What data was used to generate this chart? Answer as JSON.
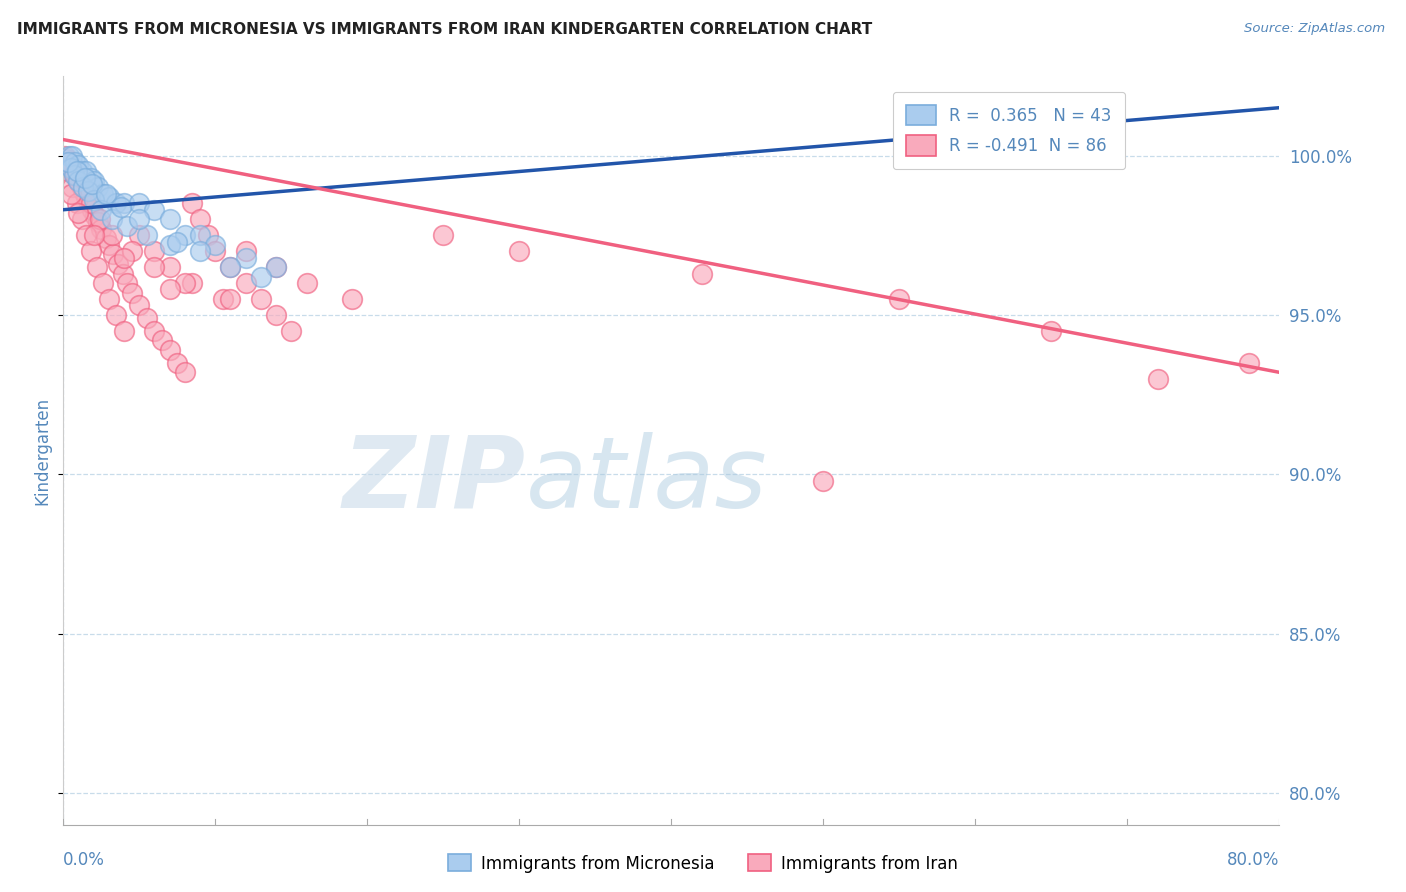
{
  "title": "IMMIGRANTS FROM MICRONESIA VS IMMIGRANTS FROM IRAN KINDERGARTEN CORRELATION CHART",
  "source": "Source: ZipAtlas.com",
  "ylabel": "Kindergarten",
  "yticks": [
    80.0,
    85.0,
    90.0,
    95.0,
    100.0
  ],
  "xlim": [
    0.0,
    80.0
  ],
  "ylim": [
    79.0,
    102.5
  ],
  "legend1_R": "0.365",
  "legend1_N": "43",
  "legend2_R": "-0.491",
  "legend2_N": "86",
  "blue_color": "#7aaddc",
  "pink_color": "#f06080",
  "blue_face": "#aaccee",
  "pink_face": "#f9aabc",
  "micronesia_x": [
    0.4,
    0.6,
    0.8,
    1.0,
    1.2,
    1.5,
    1.8,
    2.0,
    2.3,
    2.6,
    3.0,
    3.5,
    4.0,
    5.0,
    6.0,
    7.0,
    8.0,
    9.0,
    10.0,
    12.0,
    14.0,
    0.5,
    0.7,
    1.0,
    1.3,
    1.6,
    2.0,
    2.5,
    3.2,
    4.2,
    5.5,
    7.0,
    9.0,
    11.0,
    13.0,
    0.3,
    0.9,
    1.4,
    1.9,
    2.8,
    3.8,
    5.0,
    7.5
  ],
  "micronesia_y": [
    100.0,
    100.0,
    99.8,
    99.7,
    99.5,
    99.5,
    99.3,
    99.2,
    99.0,
    98.8,
    98.7,
    98.5,
    98.5,
    98.5,
    98.3,
    98.0,
    97.5,
    97.5,
    97.2,
    96.8,
    96.5,
    99.6,
    99.4,
    99.2,
    99.0,
    98.9,
    98.6,
    98.3,
    98.0,
    97.8,
    97.5,
    97.2,
    97.0,
    96.5,
    96.2,
    99.8,
    99.5,
    99.3,
    99.1,
    98.8,
    98.4,
    98.0,
    97.3
  ],
  "iran_x": [
    0.1,
    0.2,
    0.3,
    0.4,
    0.5,
    0.6,
    0.7,
    0.8,
    0.9,
    1.0,
    1.1,
    1.2,
    1.3,
    1.5,
    1.7,
    1.9,
    2.1,
    2.3,
    2.5,
    2.8,
    3.0,
    3.3,
    3.6,
    3.9,
    4.2,
    4.5,
    5.0,
    5.5,
    6.0,
    6.5,
    7.0,
    7.5,
    8.0,
    8.5,
    9.0,
    9.5,
    10.0,
    11.0,
    12.0,
    13.0,
    14.0,
    15.0,
    0.3,
    0.6,
    0.9,
    1.2,
    1.5,
    1.8,
    2.2,
    2.6,
    3.0,
    3.5,
    4.0,
    5.0,
    6.0,
    7.0,
    8.5,
    10.5,
    0.4,
    0.8,
    1.3,
    1.8,
    2.4,
    3.2,
    4.5,
    6.0,
    8.0,
    11.0,
    12.0,
    14.0,
    16.0,
    19.0,
    25.0,
    30.0,
    42.0,
    55.0,
    65.0,
    78.0,
    0.5,
    1.0,
    2.0,
    4.0,
    7.0,
    50.0,
    72.0
  ],
  "iran_y": [
    100.0,
    99.9,
    99.8,
    99.7,
    99.6,
    99.5,
    99.5,
    99.4,
    99.3,
    99.2,
    99.1,
    99.0,
    98.9,
    98.7,
    98.5,
    98.3,
    98.1,
    97.9,
    97.7,
    97.4,
    97.2,
    96.9,
    96.6,
    96.3,
    96.0,
    95.7,
    95.3,
    94.9,
    94.5,
    94.2,
    93.9,
    93.5,
    93.2,
    98.5,
    98.0,
    97.5,
    97.0,
    96.5,
    96.0,
    95.5,
    95.0,
    94.5,
    99.5,
    99.0,
    98.5,
    98.0,
    97.5,
    97.0,
    96.5,
    96.0,
    95.5,
    95.0,
    94.5,
    97.5,
    97.0,
    96.5,
    96.0,
    95.5,
    99.8,
    99.4,
    99.0,
    98.5,
    98.0,
    97.5,
    97.0,
    96.5,
    96.0,
    95.5,
    97.0,
    96.5,
    96.0,
    95.5,
    97.5,
    97.0,
    96.3,
    95.5,
    94.5,
    93.5,
    98.8,
    98.2,
    97.5,
    96.8,
    95.8,
    89.8,
    93.0
  ],
  "micro_trendline_x": [
    0.0,
    80.0
  ],
  "micro_trendline_y": [
    98.3,
    101.5
  ],
  "iran_trendline_x": [
    0.0,
    80.0
  ],
  "iran_trendline_y": [
    100.5,
    93.2
  ],
  "watermark_zip": "ZIP",
  "watermark_atlas": "atlas",
  "background_color": "#ffffff",
  "grid_color": "#c8dcea",
  "title_color": "#222222",
  "axis_label_color": "#5588bb",
  "right_tick_color": "#5588bb",
  "bottom_tick_color": "#5588bb"
}
